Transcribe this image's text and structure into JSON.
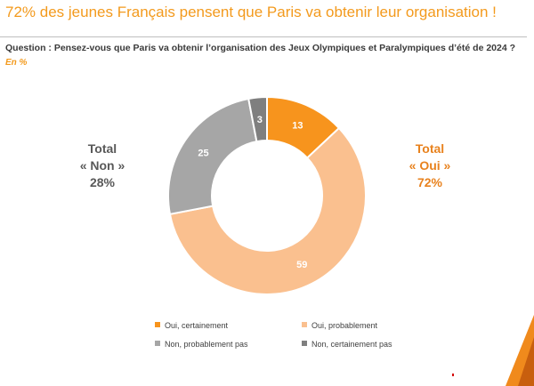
{
  "header": {
    "title": "72% des jeunes Français pensent que Paris va obtenir leur organisation !",
    "question": "Question : Pensez-vous que Paris va obtenir l’organisation des Jeux Olympiques et Paralympiques d’été de 2024 ?",
    "unit": "En  %"
  },
  "totals": {
    "non": {
      "line1": "Total",
      "line2": "« Non »",
      "value": "28%"
    },
    "oui": {
      "line1": "Total",
      "line2": "« Oui »",
      "value": "72%"
    }
  },
  "chart_data": {
    "type": "pie",
    "variant": "donut",
    "categories": [
      "Oui, certainement",
      "Oui, probablement",
      "Non, probablement pas",
      "Non, certainement pas"
    ],
    "values": [
      13,
      59,
      25,
      3
    ],
    "data_labels": [
      "13",
      "59",
      "25",
      "3"
    ],
    "colors": [
      "#F7941D",
      "#FAC08F",
      "#A6A6A6",
      "#7F7F7F"
    ],
    "label_colors": [
      "#ffffff",
      "#ffffff",
      "#ffffff",
      "#ffffff"
    ],
    "start": "12 o'clock, clockwise",
    "legend_position": "bottom",
    "legend": [
      {
        "label": "Oui, certainement",
        "color": "#F7941D"
      },
      {
        "label": "Oui, probablement",
        "color": "#FAC08F"
      },
      {
        "label": "Non, probablement pas",
        "color": "#A6A6A6"
      },
      {
        "label": "Non, certainement pas",
        "color": "#7F7F7F"
      }
    ]
  },
  "accent_colors": {
    "title": "#F39A1D",
    "corner": "#F08A1C"
  }
}
